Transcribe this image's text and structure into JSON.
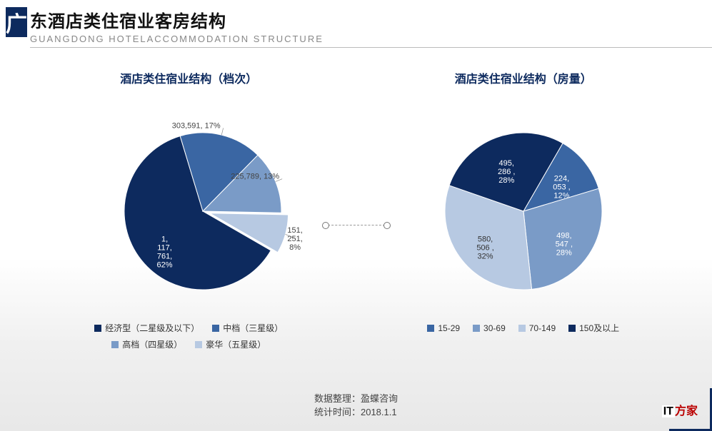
{
  "header": {
    "logo_char": "广",
    "title_cn": "东酒店类住宿业客房结构",
    "title_en": "GUANGDONG HOTELACCOMMODATION STRUCTURE"
  },
  "palette": {
    "c1": "#0d2a5e",
    "c2": "#3a66a3",
    "c3": "#7a9bc7",
    "c4": "#b7c9e2"
  },
  "chart_left": {
    "title": "酒店类住宿业结构（档次）",
    "type": "pie",
    "slices": [
      {
        "label": "1,117,761, 62%",
        "value": 62,
        "color": "#0d2a5e",
        "label_pos": "inside"
      },
      {
        "label": "303,591, 17%",
        "value": 17,
        "color": "#3a66a3",
        "label_pos": "outside-left"
      },
      {
        "label": "225,789, 13%",
        "value": 13,
        "color": "#7a9bc7",
        "label_pos": "outside-left"
      },
      {
        "label": "151,251, 8%",
        "value": 8,
        "color": "#b7c9e2",
        "label_pos": "outside-top",
        "explode": 10
      }
    ],
    "legend": [
      {
        "label": "经济型（二星级及以下）",
        "color": "#0d2a5e"
      },
      {
        "label": "中档（三星级）",
        "color": "#3a66a3"
      },
      {
        "label": "高档（四星级）",
        "color": "#7a9bc7"
      },
      {
        "label": "豪华（五星级）",
        "color": "#b7c9e2"
      }
    ]
  },
  "chart_right": {
    "title": "酒店类住宿业结构（房量）",
    "type": "pie",
    "slices": [
      {
        "label": "224,053 , 12%",
        "value": 12,
        "color": "#3a66a3",
        "label_pos": "inside"
      },
      {
        "label": "498,547 , 28%",
        "value": 28,
        "color": "#7a9bc7",
        "label_pos": "inside"
      },
      {
        "label": "580,506 , 32%",
        "value": 32,
        "color": "#b7c9e2",
        "label_pos": "inside-dark"
      },
      {
        "label": "495,286 , 28%",
        "value": 28,
        "color": "#0d2a5e",
        "label_pos": "inside"
      }
    ],
    "legend": [
      {
        "label": "15-29",
        "color": "#3a66a3"
      },
      {
        "label": "30-69",
        "color": "#7a9bc7"
      },
      {
        "label": "70-149",
        "color": "#b7c9e2"
      },
      {
        "label": "150及以上",
        "color": "#0d2a5e"
      }
    ]
  },
  "footer": {
    "line1": "数据整理：盈蝶咨询",
    "line2": "统计时间：2018.1.1"
  },
  "watermark": {
    "it": "IT",
    "rest": "方家"
  },
  "style": {
    "font_family": "Microsoft YaHei",
    "title_fontsize": 24,
    "chart_title_fontsize": 16,
    "label_fontsize": 11,
    "legend_fontsize": 12,
    "background": "#ffffff",
    "accent": "#0d2a5e",
    "pie_radius": 110,
    "start_angle_deg": 30
  }
}
